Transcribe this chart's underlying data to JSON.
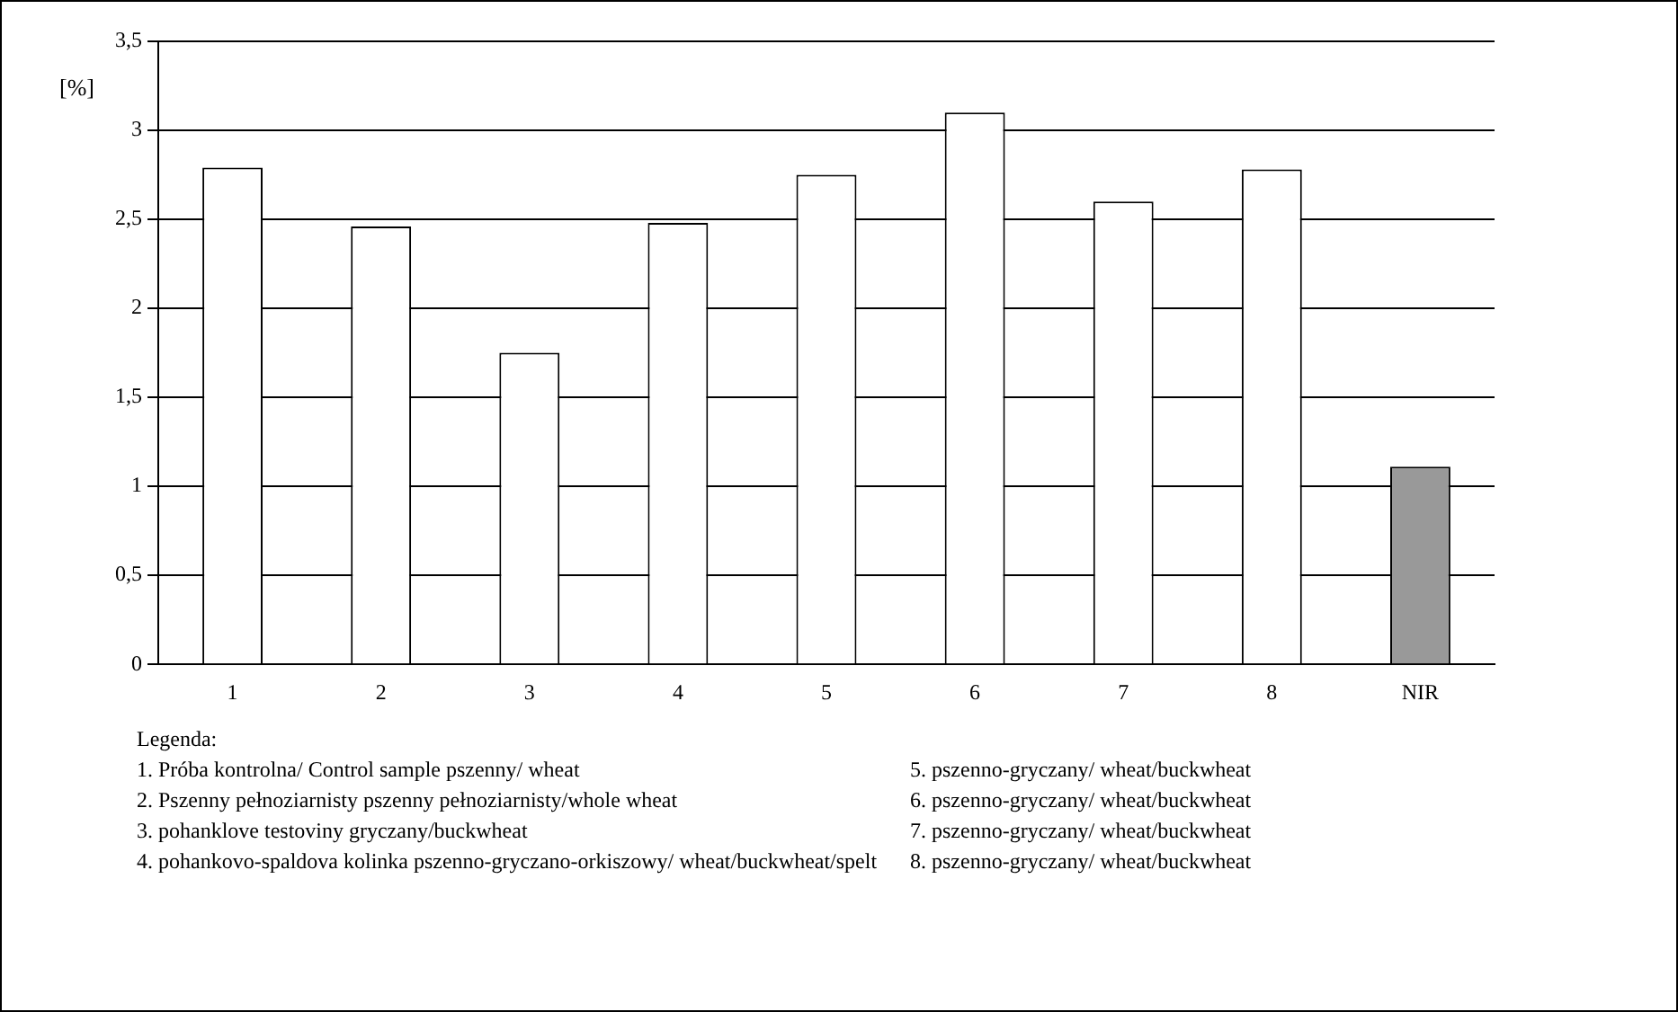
{
  "chart_data": {
    "type": "bar",
    "ylabel": "[%]",
    "categories": [
      "1",
      "2",
      "3",
      "4",
      "5",
      "6",
      "7",
      "8",
      "NIR"
    ],
    "values": [
      2.79,
      2.46,
      1.75,
      2.48,
      2.75,
      3.1,
      2.6,
      2.78,
      1.11
    ],
    "colors": [
      "#ffffff",
      "#ffffff",
      "#ffffff",
      "#ffffff",
      "#ffffff",
      "#ffffff",
      "#ffffff",
      "#ffffff",
      "#999999"
    ],
    "ylim": [
      0,
      3.5
    ],
    "yticks": [
      0,
      {
        "value": 0.5,
        "label": "0,5"
      },
      1,
      {
        "value": 1.5,
        "label": "1,5"
      },
      2,
      {
        "value": 2.5,
        "label": "2,5"
      },
      3,
      {
        "value": 3.5,
        "label": "3,5"
      }
    ],
    "grid": "y",
    "legend": false,
    "annotations": [
      "Legenda:",
      "1. Próba kontrolna/ Control sample pszenny/ wheat",
      "2. Pszenny pełnoziarnisty pszenny pełnoziarnisty/whole wheat",
      "3. pohanklove testoviny gryczany/buckwheat",
      "4. pohankovo-spaldova kolinka pszenno-gryczano-orkiszowy/ wheat/buckwheat/spelt",
      "5. pszenno-gryczany/ wheat/buckwheat",
      "6. pszenno-gryczany/ wheat/buckwheat",
      "7. pszenno-gryczany/ wheat/buckwheat",
      "8. pszenno-gryczany/ wheat/buckwheat"
    ]
  }
}
